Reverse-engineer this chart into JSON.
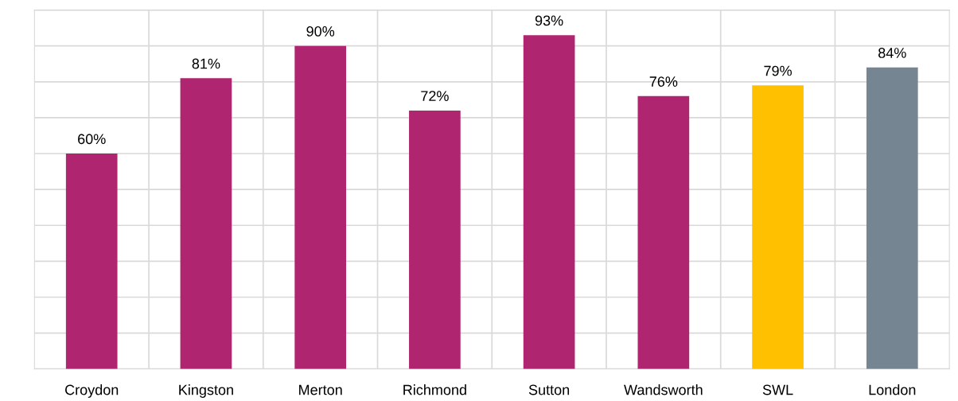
{
  "chart_data": {
    "type": "bar",
    "categories": [
      "Croydon",
      "Kingston",
      "Merton",
      "Richmond",
      "Sutton",
      "Wandsworth",
      "SWL",
      "London"
    ],
    "values": [
      60,
      81,
      90,
      72,
      93,
      76,
      79,
      84
    ],
    "colors": [
      "#b0256f",
      "#b0256f",
      "#b0256f",
      "#b0256f",
      "#b0256f",
      "#b0256f",
      "#ffc000",
      "#758592"
    ],
    "value_labels": [
      "60%",
      "81%",
      "90%",
      "72%",
      "93%",
      "76%",
      "79%",
      "84%"
    ],
    "ylim": [
      0,
      100
    ],
    "yticks": [
      {
        "value": 0,
        "label": null
      },
      {
        "value": 10,
        "label": null
      },
      {
        "value": 20,
        "label": null
      },
      {
        "value": 30,
        "label": null
      },
      {
        "value": 40,
        "label": null
      },
      {
        "value": 50,
        "label": null
      },
      {
        "value": 60,
        "label": null
      },
      {
        "value": 70,
        "label": null
      },
      {
        "value": 80,
        "label": null
      },
      {
        "value": 90,
        "label": null
      },
      {
        "value": 100,
        "label": null
      }
    ],
    "tick_labels": "x",
    "grid": true
  }
}
